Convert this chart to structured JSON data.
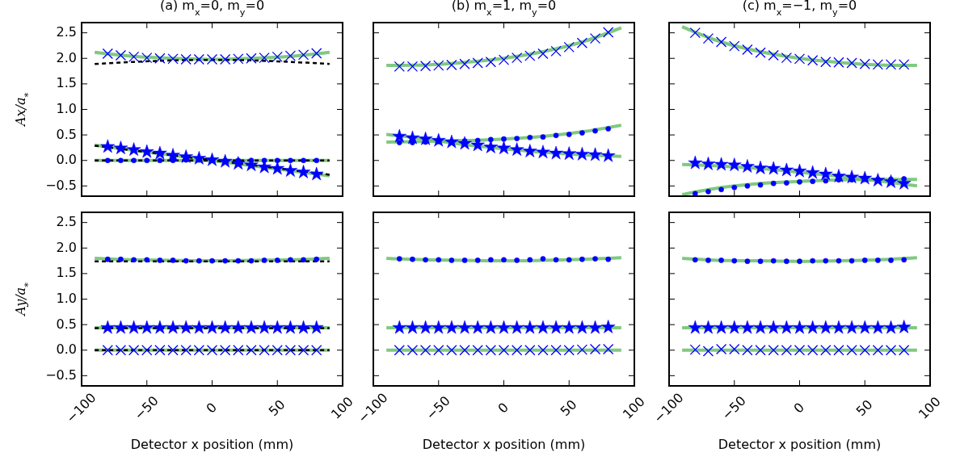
{
  "chart_data": [
    {
      "type": "scatter",
      "title": "(a) m$_{x}$=0, m$_{y}$=0",
      "ylabel": "Ax/a$_{*}$",
      "xlim": [
        -100,
        100
      ],
      "ylim": [
        -0.7,
        2.7
      ],
      "xticks": [
        {
          "value": -100,
          "label": null
        },
        {
          "value": -50,
          "label": null
        },
        {
          "value": 0,
          "label": null
        },
        {
          "value": 50,
          "label": null
        },
        {
          "value": 100,
          "label": null
        }
      ],
      "yticks": [
        {
          "value": -0.5,
          "label": "−0.5"
        },
        {
          "value": 0,
          "label": "0.0"
        },
        {
          "value": 0.5,
          "label": "0.5"
        },
        {
          "value": 1,
          "label": "1.0"
        },
        {
          "value": 1.5,
          "label": "1.5"
        },
        {
          "value": 2,
          "label": "2.0"
        },
        {
          "value": 2.5,
          "label": "2.5"
        }
      ],
      "tick_labels": "y",
      "series": [
        {
          "type": "line",
          "color": "#6abf6a",
          "x": [
            -90,
            -60,
            -30,
            0,
            30,
            60,
            90
          ],
          "values": [
            2.12,
            2.04,
            2.0,
            1.98,
            2.0,
            2.04,
            2.12
          ],
          "marker": "none",
          "line_style": "solid"
        },
        {
          "type": "line",
          "color": "#6abf6a",
          "x": [
            -90,
            90
          ],
          "values": [
            0.3,
            -0.3
          ],
          "marker": "none",
          "line_style": "solid"
        },
        {
          "type": "line",
          "color": "#6abf6a",
          "x": [
            -90,
            90
          ],
          "values": [
            0.0,
            0.0
          ],
          "marker": "none",
          "line_style": "solid"
        },
        {
          "type": "line",
          "color": "#000000",
          "x": [
            -90,
            -60,
            -30,
            0,
            30,
            60,
            90
          ],
          "values": [
            1.89,
            1.93,
            1.96,
            1.97,
            1.96,
            1.93,
            1.89
          ],
          "marker": "none",
          "line_style": "dashed"
        },
        {
          "type": "line",
          "color": "#000000",
          "x": [
            -90,
            90
          ],
          "values": [
            0.29,
            -0.28
          ],
          "marker": "none",
          "line_style": "dashed"
        },
        {
          "type": "line",
          "color": "#000000",
          "x": [
            -90,
            90
          ],
          "values": [
            0.0,
            0.0
          ],
          "marker": "none",
          "line_style": "dashed"
        },
        {
          "type": "scatter",
          "color": "#0000ff",
          "marker": "cross",
          "x": [
            -80,
            -70,
            -60,
            -50,
            -40,
            -30,
            -20,
            -10,
            0,
            10,
            20,
            30,
            40,
            50,
            60,
            70,
            80
          ],
          "values": [
            2.09,
            2.06,
            2.03,
            2.01,
            2.0,
            1.99,
            1.98,
            1.98,
            1.98,
            1.98,
            1.99,
            2.0,
            2.01,
            2.03,
            2.05,
            2.07,
            2.1
          ]
        },
        {
          "type": "scatter",
          "color": "#0000ff",
          "marker": "star",
          "x": [
            -80,
            -70,
            -60,
            -50,
            -40,
            -30,
            -20,
            -10,
            0,
            10,
            20,
            30,
            40,
            50,
            60,
            70,
            80
          ],
          "values": [
            0.27,
            0.24,
            0.21,
            0.17,
            0.14,
            0.1,
            0.07,
            0.04,
            0.01,
            -0.02,
            -0.06,
            -0.09,
            -0.13,
            -0.16,
            -0.2,
            -0.23,
            -0.27
          ]
        },
        {
          "type": "scatter",
          "color": "#0000ff",
          "marker": "circle",
          "x": [
            -80,
            -70,
            -60,
            -50,
            -40,
            -30,
            -20,
            -10,
            0,
            10,
            20,
            30,
            40,
            50,
            60,
            70,
            80
          ],
          "values": [
            0.0,
            0.0,
            0.0,
            0.0,
            0.0,
            0.0,
            0.01,
            0.01,
            0.01,
            0.0,
            0.0,
            0.0,
            0.0,
            0.0,
            0.0,
            0.0,
            0.0
          ]
        }
      ]
    },
    {
      "type": "scatter",
      "title": "(b) m$_{x}$=1, m$_{y}$=0",
      "xlim": [
        -100,
        100
      ],
      "ylim": [
        -0.7,
        2.7
      ],
      "xticks": [
        {
          "value": -100,
          "label": null
        },
        {
          "value": -50,
          "label": null
        },
        {
          "value": 0,
          "label": null
        },
        {
          "value": 50,
          "label": null
        },
        {
          "value": 100,
          "label": null
        }
      ],
      "yticks": [
        {
          "value": -0.5,
          "label": null
        },
        {
          "value": 0,
          "label": null
        },
        {
          "value": 0.5,
          "label": null
        },
        {
          "value": 1,
          "label": null
        },
        {
          "value": 1.5,
          "label": null
        },
        {
          "value": 2,
          "label": null
        },
        {
          "value": 2.5,
          "label": null
        }
      ],
      "tick_labels": false,
      "series": [
        {
          "type": "line",
          "color": "#6abf6a",
          "x": [
            -90,
            -60,
            -30,
            0,
            30,
            60,
            90
          ],
          "values": [
            1.86,
            1.87,
            1.92,
            2.0,
            2.13,
            2.32,
            2.6
          ],
          "marker": "none",
          "line_style": "solid"
        },
        {
          "type": "line",
          "color": "#6abf6a",
          "x": [
            -90,
            -60,
            -30,
            0,
            30,
            60,
            90
          ],
          "values": [
            0.51,
            0.42,
            0.31,
            0.23,
            0.16,
            0.11,
            0.08
          ],
          "marker": "none",
          "line_style": "solid"
        },
        {
          "type": "line",
          "color": "#6abf6a",
          "x": [
            -90,
            -60,
            -30,
            0,
            30,
            60,
            90
          ],
          "values": [
            0.36,
            0.37,
            0.39,
            0.42,
            0.47,
            0.56,
            0.69
          ],
          "marker": "none",
          "line_style": "solid"
        },
        {
          "type": "scatter",
          "color": "#0000ff",
          "marker": "cross",
          "x": [
            -80,
            -70,
            -60,
            -50,
            -40,
            -30,
            -20,
            -10,
            0,
            10,
            20,
            30,
            40,
            50,
            60,
            70,
            80
          ],
          "values": [
            1.84,
            1.84,
            1.85,
            1.86,
            1.87,
            1.89,
            1.91,
            1.93,
            1.97,
            2.01,
            2.05,
            2.09,
            2.14,
            2.22,
            2.3,
            2.39,
            2.51
          ]
        },
        {
          "type": "scatter",
          "color": "#0000ff",
          "marker": "star",
          "x": [
            -80,
            -70,
            -60,
            -50,
            -40,
            -30,
            -20,
            -10,
            0,
            10,
            20,
            30,
            40,
            50,
            60,
            70,
            80
          ],
          "values": [
            0.47,
            0.44,
            0.42,
            0.39,
            0.36,
            0.33,
            0.3,
            0.26,
            0.24,
            0.21,
            0.18,
            0.16,
            0.14,
            0.13,
            0.12,
            0.11,
            0.09
          ]
        },
        {
          "type": "scatter",
          "color": "#0000ff",
          "marker": "circle",
          "x": [
            -80,
            -70,
            -60,
            -50,
            -40,
            -30,
            -20,
            -10,
            0,
            10,
            20,
            30,
            40,
            50,
            60,
            70,
            80
          ],
          "values": [
            0.35,
            0.35,
            0.36,
            0.37,
            0.37,
            0.38,
            0.39,
            0.41,
            0.42,
            0.43,
            0.45,
            0.46,
            0.49,
            0.51,
            0.54,
            0.58,
            0.62
          ]
        }
      ]
    },
    {
      "type": "scatter",
      "title": "(c) m$_{x}$=−1, m$_{y}$=0",
      "xlim": [
        -100,
        100
      ],
      "ylim": [
        -0.7,
        2.7
      ],
      "xticks": [
        {
          "value": -100,
          "label": null
        },
        {
          "value": -50,
          "label": null
        },
        {
          "value": 0,
          "label": null
        },
        {
          "value": 50,
          "label": null
        },
        {
          "value": 100,
          "label": null
        }
      ],
      "yticks": [
        {
          "value": -0.5,
          "label": null
        },
        {
          "value": 0,
          "label": null
        },
        {
          "value": 0.5,
          "label": null
        },
        {
          "value": 1,
          "label": null
        },
        {
          "value": 1.5,
          "label": null
        },
        {
          "value": 2,
          "label": null
        },
        {
          "value": 2.5,
          "label": null
        }
      ],
      "tick_labels": false,
      "series": [
        {
          "type": "line",
          "color": "#6abf6a",
          "x": [
            -90,
            -60,
            -30,
            0,
            30,
            60,
            90
          ],
          "values": [
            2.62,
            2.32,
            2.13,
            2.0,
            1.92,
            1.87,
            1.86
          ],
          "marker": "none",
          "line_style": "solid"
        },
        {
          "type": "line",
          "color": "#6abf6a",
          "x": [
            -90,
            -60,
            -30,
            0,
            30,
            60,
            90
          ],
          "values": [
            -0.08,
            -0.11,
            -0.16,
            -0.23,
            -0.31,
            -0.4,
            -0.5
          ],
          "marker": "none",
          "line_style": "solid"
        },
        {
          "type": "line",
          "color": "#6abf6a",
          "x": [
            -90,
            -60,
            -30,
            0,
            30,
            60,
            90
          ],
          "values": [
            -0.67,
            -0.53,
            -0.45,
            -0.41,
            -0.38,
            -0.37,
            -0.37
          ],
          "marker": "none",
          "line_style": "solid"
        },
        {
          "type": "scatter",
          "color": "#0000ff",
          "marker": "cross",
          "x": [
            -80,
            -70,
            -60,
            -50,
            -40,
            -30,
            -20,
            -10,
            0,
            10,
            20,
            30,
            40,
            50,
            60,
            70,
            80
          ],
          "values": [
            2.5,
            2.39,
            2.32,
            2.24,
            2.17,
            2.11,
            2.06,
            2.01,
            1.99,
            1.96,
            1.93,
            1.92,
            1.91,
            1.89,
            1.88,
            1.88,
            1.88
          ]
        },
        {
          "type": "scatter",
          "color": "#0000ff",
          "marker": "star",
          "x": [
            -80,
            -70,
            -60,
            -50,
            -40,
            -30,
            -20,
            -10,
            0,
            10,
            20,
            30,
            40,
            50,
            60,
            70,
            80
          ],
          "values": [
            -0.05,
            -0.07,
            -0.08,
            -0.09,
            -0.12,
            -0.15,
            -0.16,
            -0.19,
            -0.21,
            -0.24,
            -0.27,
            -0.31,
            -0.33,
            -0.35,
            -0.39,
            -0.42,
            -0.45
          ]
        },
        {
          "type": "scatter",
          "color": "#0000ff",
          "marker": "circle",
          "x": [
            -80,
            -70,
            -60,
            -50,
            -40,
            -30,
            -20,
            -10,
            0,
            10,
            20,
            30,
            40,
            50,
            60,
            70,
            80
          ],
          "values": [
            -0.65,
            -0.61,
            -0.57,
            -0.53,
            -0.5,
            -0.48,
            -0.45,
            -0.44,
            -0.42,
            -0.41,
            -0.4,
            -0.38,
            -0.38,
            -0.37,
            -0.37,
            -0.37,
            -0.36
          ]
        }
      ]
    },
    {
      "type": "scatter",
      "xlabel": "Detector x position (mm)",
      "ylabel": "Ay/a$_{*}$",
      "xlim": [
        -100,
        100
      ],
      "ylim": [
        -0.7,
        2.7
      ],
      "xticks": [
        {
          "value": -100,
          "label": "−100"
        },
        {
          "value": -50,
          "label": "−50"
        },
        0,
        50,
        100
      ],
      "yticks": [
        {
          "value": -0.5,
          "label": "−0.5"
        },
        {
          "value": 0,
          "label": "0.0"
        },
        {
          "value": 0.5,
          "label": "0.5"
        },
        {
          "value": 1,
          "label": "1.0"
        },
        {
          "value": 1.5,
          "label": "1.5"
        },
        {
          "value": 2,
          "label": "2.0"
        },
        {
          "value": 2.5,
          "label": "2.5"
        }
      ],
      "series": [
        {
          "type": "line",
          "color": "#6abf6a",
          "x": [
            -90,
            -60,
            -30,
            0,
            30,
            60,
            90
          ],
          "values": [
            1.8,
            1.77,
            1.76,
            1.75,
            1.76,
            1.77,
            1.8
          ],
          "marker": "none",
          "line_style": "solid"
        },
        {
          "type": "line",
          "color": "#6abf6a",
          "x": [
            -90,
            90
          ],
          "values": [
            0.44,
            0.44
          ],
          "marker": "none",
          "line_style": "solid"
        },
        {
          "type": "line",
          "color": "#6abf6a",
          "x": [
            -90,
            90
          ],
          "values": [
            0.0,
            0.0
          ],
          "marker": "none",
          "line_style": "solid"
        },
        {
          "type": "line",
          "color": "#000000",
          "x": [
            -90,
            90
          ],
          "values": [
            1.74,
            1.74
          ],
          "marker": "none",
          "line_style": "dashed"
        },
        {
          "type": "line",
          "color": "#000000",
          "x": [
            -90,
            90
          ],
          "values": [
            0.43,
            0.43
          ],
          "marker": "none",
          "line_style": "dashed"
        },
        {
          "type": "line",
          "color": "#000000",
          "x": [
            -90,
            90
          ],
          "values": [
            0.0,
            0.0
          ],
          "marker": "none",
          "line_style": "dashed"
        },
        {
          "type": "scatter",
          "color": "#0000ff",
          "marker": "circle",
          "x": [
            -80,
            -70,
            -60,
            -50,
            -40,
            -30,
            -20,
            -10,
            0,
            10,
            20,
            30,
            40,
            50,
            60,
            70,
            80
          ],
          "values": [
            1.78,
            1.78,
            1.77,
            1.77,
            1.76,
            1.76,
            1.75,
            1.75,
            1.75,
            1.75,
            1.75,
            1.75,
            1.76,
            1.76,
            1.77,
            1.77,
            1.78
          ]
        },
        {
          "type": "scatter",
          "color": "#0000ff",
          "marker": "star",
          "x": [
            -80,
            -70,
            -60,
            -50,
            -40,
            -30,
            -20,
            -10,
            0,
            10,
            20,
            30,
            40,
            50,
            60,
            70,
            80
          ],
          "values": [
            0.44,
            0.44,
            0.44,
            0.44,
            0.44,
            0.44,
            0.44,
            0.44,
            0.44,
            0.44,
            0.44,
            0.44,
            0.44,
            0.44,
            0.44,
            0.44,
            0.44
          ]
        },
        {
          "type": "scatter",
          "color": "#0000ff",
          "marker": "cross",
          "x": [
            -80,
            -70,
            -60,
            -50,
            -40,
            -30,
            -20,
            -10,
            0,
            10,
            20,
            30,
            40,
            50,
            60,
            70,
            80
          ],
          "values": [
            0.0,
            0.0,
            0.0,
            0.0,
            0.0,
            0.0,
            0.0,
            0.0,
            0.0,
            0.0,
            0.0,
            0.0,
            0.0,
            0.0,
            0.0,
            0.0,
            0.0
          ]
        }
      ]
    },
    {
      "type": "scatter",
      "xlabel": "Detector x position (mm)",
      "xlim": [
        -100,
        100
      ],
      "ylim": [
        -0.7,
        2.7
      ],
      "xticks": [
        {
          "value": -100,
          "label": "−100"
        },
        {
          "value": -50,
          "label": "−50"
        },
        0,
        50,
        100
      ],
      "yticks": [
        {
          "value": -0.5,
          "label": null
        },
        {
          "value": 0,
          "label": null
        },
        {
          "value": 0.5,
          "label": null
        },
        {
          "value": 1,
          "label": null
        },
        {
          "value": 1.5,
          "label": null
        },
        {
          "value": 2,
          "label": null
        },
        {
          "value": 2.5,
          "label": null
        }
      ],
      "tick_labels": "x",
      "series": [
        {
          "type": "line",
          "color": "#6abf6a",
          "x": [
            -90,
            -60,
            -30,
            0,
            30,
            60,
            90
          ],
          "values": [
            1.8,
            1.77,
            1.76,
            1.75,
            1.76,
            1.78,
            1.81
          ],
          "marker": "none",
          "line_style": "solid"
        },
        {
          "type": "line",
          "color": "#6abf6a",
          "x": [
            -90,
            90
          ],
          "values": [
            0.44,
            0.44
          ],
          "marker": "none",
          "line_style": "solid"
        },
        {
          "type": "line",
          "color": "#6abf6a",
          "x": [
            -90,
            90
          ],
          "values": [
            0.0,
            0.0
          ],
          "marker": "none",
          "line_style": "solid"
        },
        {
          "type": "scatter",
          "color": "#0000ff",
          "marker": "circle",
          "x": [
            -80,
            -70,
            -60,
            -50,
            -40,
            -30,
            -20,
            -10,
            0,
            10,
            20,
            30,
            40,
            50,
            60,
            70,
            80
          ],
          "values": [
            1.79,
            1.78,
            1.77,
            1.77,
            1.76,
            1.76,
            1.76,
            1.77,
            1.77,
            1.76,
            1.77,
            1.79,
            1.77,
            1.77,
            1.78,
            1.79,
            1.78
          ]
        },
        {
          "type": "scatter",
          "color": "#0000ff",
          "marker": "star",
          "x": [
            -80,
            -70,
            -60,
            -50,
            -40,
            -30,
            -20,
            -10,
            0,
            10,
            20,
            30,
            40,
            50,
            60,
            70,
            80
          ],
          "values": [
            0.44,
            0.44,
            0.44,
            0.44,
            0.44,
            0.44,
            0.44,
            0.44,
            0.44,
            0.44,
            0.44,
            0.44,
            0.44,
            0.44,
            0.44,
            0.44,
            0.45
          ]
        },
        {
          "type": "scatter",
          "color": "#0000ff",
          "marker": "cross",
          "x": [
            -80,
            -70,
            -60,
            -50,
            -40,
            -30,
            -20,
            -10,
            0,
            10,
            20,
            30,
            40,
            50,
            60,
            70,
            80
          ],
          "values": [
            0.0,
            0.0,
            0.0,
            0.0,
            0.0,
            0.0,
            0.0,
            0.0,
            0.0,
            0.0,
            0.0,
            0.0,
            0.0,
            0.0,
            0.01,
            0.02,
            0.02
          ]
        }
      ]
    },
    {
      "type": "scatter",
      "xlabel": "Detector x position (mm)",
      "xlim": [
        -100,
        100
      ],
      "ylim": [
        -0.7,
        2.7
      ],
      "xticks": [
        {
          "value": -100,
          "label": "−100"
        },
        {
          "value": -50,
          "label": "−50"
        },
        0,
        50,
        100
      ],
      "yticks": [
        {
          "value": -0.5,
          "label": null
        },
        {
          "value": 0,
          "label": null
        },
        {
          "value": 0.5,
          "label": null
        },
        {
          "value": 1,
          "label": null
        },
        {
          "value": 1.5,
          "label": null
        },
        {
          "value": 2,
          "label": null
        },
        {
          "value": 2.5,
          "label": null
        }
      ],
      "tick_labels": "x",
      "series": [
        {
          "type": "line",
          "color": "#6abf6a",
          "x": [
            -90,
            -60,
            -30,
            0,
            30,
            60,
            90
          ],
          "values": [
            1.8,
            1.76,
            1.75,
            1.74,
            1.75,
            1.77,
            1.81
          ],
          "marker": "none",
          "line_style": "solid"
        },
        {
          "type": "line",
          "color": "#6abf6a",
          "x": [
            -90,
            90
          ],
          "values": [
            0.44,
            0.44
          ],
          "marker": "none",
          "line_style": "solid"
        },
        {
          "type": "line",
          "color": "#6abf6a",
          "x": [
            -90,
            90
          ],
          "values": [
            0.0,
            0.0
          ],
          "marker": "none",
          "line_style": "solid"
        },
        {
          "type": "scatter",
          "color": "#0000ff",
          "marker": "circle",
          "x": [
            -80,
            -70,
            -60,
            -50,
            -40,
            -30,
            -20,
            -10,
            0,
            10,
            20,
            30,
            40,
            50,
            60,
            70,
            80
          ],
          "values": [
            1.77,
            1.76,
            1.76,
            1.75,
            1.74,
            1.74,
            1.75,
            1.74,
            1.74,
            1.75,
            1.75,
            1.75,
            1.75,
            1.76,
            1.76,
            1.76,
            1.77
          ]
        },
        {
          "type": "scatter",
          "color": "#0000ff",
          "marker": "star",
          "x": [
            -80,
            -70,
            -60,
            -50,
            -40,
            -30,
            -20,
            -10,
            0,
            10,
            20,
            30,
            40,
            50,
            60,
            70,
            80
          ],
          "values": [
            0.44,
            0.44,
            0.44,
            0.44,
            0.44,
            0.44,
            0.44,
            0.44,
            0.44,
            0.44,
            0.44,
            0.44,
            0.44,
            0.44,
            0.44,
            0.44,
            0.45
          ]
        },
        {
          "type": "scatter",
          "color": "#0000ff",
          "marker": "cross",
          "x": [
            -80,
            -70,
            -60,
            -50,
            -40,
            -30,
            -20,
            -10,
            0,
            10,
            20,
            30,
            40,
            50,
            60,
            70,
            80
          ],
          "values": [
            0.01,
            -0.02,
            0.02,
            0.02,
            0.0,
            0.0,
            0.0,
            0.0,
            0.0,
            0.0,
            0.0,
            0.0,
            0.0,
            0.0,
            0.0,
            0.0,
            0.0
          ]
        }
      ]
    }
  ]
}
